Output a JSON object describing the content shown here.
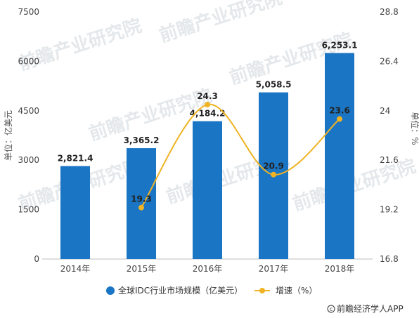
{
  "chart_data": {
    "type": "bar",
    "categories": [
      "2014年",
      "2015年",
      "2016年",
      "2017年",
      "2018年"
    ],
    "series": [
      {
        "name": "全球IDC行业市场规模（亿美元）",
        "type": "bar",
        "axis": "left",
        "values": [
          2821.4,
          3365.2,
          4184.2,
          5058.5,
          6253.1
        ],
        "value_labels": [
          "2,821.4",
          "3,365.2",
          "4,184.2",
          "5,058.5",
          "6,253.1"
        ],
        "color": "#1a75c4"
      },
      {
        "name": "增速（%）",
        "type": "line",
        "axis": "right",
        "values": [
          null,
          19.3,
          24.3,
          20.9,
          23.6
        ],
        "value_labels": [
          "",
          "19.3",
          "24.3",
          "20.9",
          "23.6"
        ],
        "color": "#f0b323"
      }
    ],
    "ylabel": "单位：亿美元",
    "y2label": "单位：%",
    "ylim": [
      0,
      7500
    ],
    "y_ticks": [
      0,
      1500,
      3000,
      4500,
      6000,
      7500
    ],
    "y_tick_labels": [
      "0",
      "1500",
      "3000",
      "4500",
      "6000",
      "7500"
    ],
    "y2lim": [
      16.8,
      28.8
    ],
    "y2_ticks": [
      16.8,
      19.2,
      21.6,
      24.0,
      26.4,
      28.8
    ],
    "y2_tick_labels": [
      "16.8",
      "19.2",
      "21.6",
      "24",
      "26.4",
      "28.8"
    ],
    "legend_position": "bottom",
    "grid": false
  },
  "source": "前瞻经济学人APP",
  "watermark": "前瞻产业研究院"
}
